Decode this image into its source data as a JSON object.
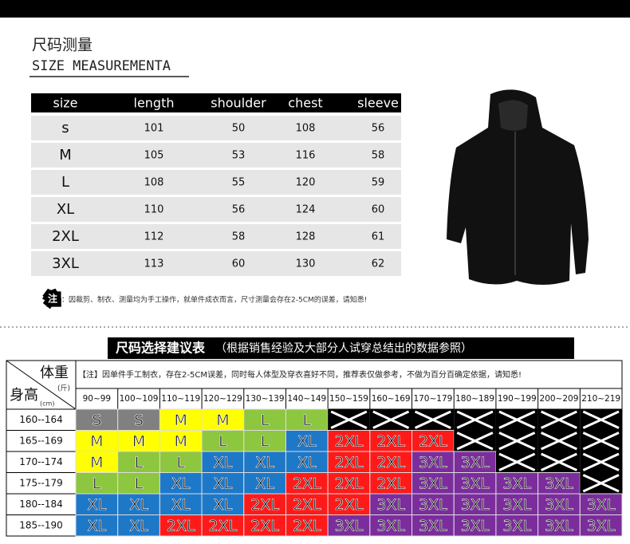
{
  "header": {
    "title_cn": "尺码测量",
    "title_en": "SIZE MEASUREMENTA"
  },
  "size_table": {
    "columns": [
      "size",
      "length",
      "shoulder",
      "chest",
      "sleeve"
    ],
    "rows": [
      [
        "s",
        "101",
        "50",
        "108",
        "56"
      ],
      [
        "M",
        "105",
        "53",
        "116",
        "58"
      ],
      [
        "L",
        "108",
        "55",
        "120",
        "59"
      ],
      [
        "XL",
        "110",
        "56",
        "124",
        "60"
      ],
      [
        "2XL",
        "112",
        "58",
        "128",
        "61"
      ],
      [
        "3XL",
        "113",
        "60",
        "130",
        "62"
      ]
    ]
  },
  "note": {
    "mark": "注",
    "text": "：因裁剪、制衣、测量均为手工操作，就单件成衣而言，尺寸测量会存在2-5CM的误差，请知悉!"
  },
  "recommendation": {
    "title": "尺码选择建议表",
    "subtitle": "（根据销售经验及大部分人试穿总结出的数据参照）",
    "note": "【注】因单件手工制衣，存在2-5CM误差，同时每人体型及穿衣喜好不同，推荐表仅做参考，不做为百分百确定依据，请知悉!",
    "weight_label": "体重",
    "weight_unit": "(斤)",
    "height_label": "身高",
    "height_unit": "(cm)",
    "weights": [
      "90~99",
      "100~109",
      "110~119",
      "120~129",
      "130~139",
      "140~149",
      "150~159",
      "160~169",
      "170~179",
      "180~189",
      "190~199",
      "200~209",
      "210~219"
    ],
    "heights": [
      "160--164",
      "165--169",
      "170--174",
      "175--179",
      "180--184",
      "185--190"
    ],
    "cells": [
      [
        "S",
        "S",
        "M",
        "M",
        "L",
        "L",
        null,
        null,
        null,
        null,
        null,
        null,
        null
      ],
      [
        "M",
        "M",
        "M",
        "L",
        "L",
        "XL",
        "2XL",
        "2XL",
        "2XL",
        null,
        null,
        null,
        null
      ],
      [
        "M",
        "L",
        "L",
        "XL",
        "XL",
        "XL",
        "2XL",
        "2XL",
        "3XL",
        "3XL",
        null,
        null,
        null
      ],
      [
        "L",
        "L",
        "XL",
        "XL",
        "XL",
        "2XL",
        "2XL",
        "2XL",
        "3XL",
        "3XL",
        "3XL",
        "3XL",
        null
      ],
      [
        "XL",
        "XL",
        "XL",
        "XL",
        "2XL",
        "2XL",
        "2XL",
        "3XL",
        "3XL",
        "3XL",
        "3XL",
        "3XL",
        "3XL"
      ],
      [
        "XL",
        "XL",
        "2XL",
        "2XL",
        "2XL",
        "2XL",
        "3XL",
        "3XL",
        "3XL",
        "3XL",
        "3XL",
        "3XL",
        "3XL"
      ]
    ],
    "colors": {
      "S": "#808080",
      "M": "#ffff00",
      "L": "#8dc63f",
      "XL": "#1e78c8",
      "2XL": "#ff1a1a",
      "3XL": "#7b2d9c"
    }
  }
}
